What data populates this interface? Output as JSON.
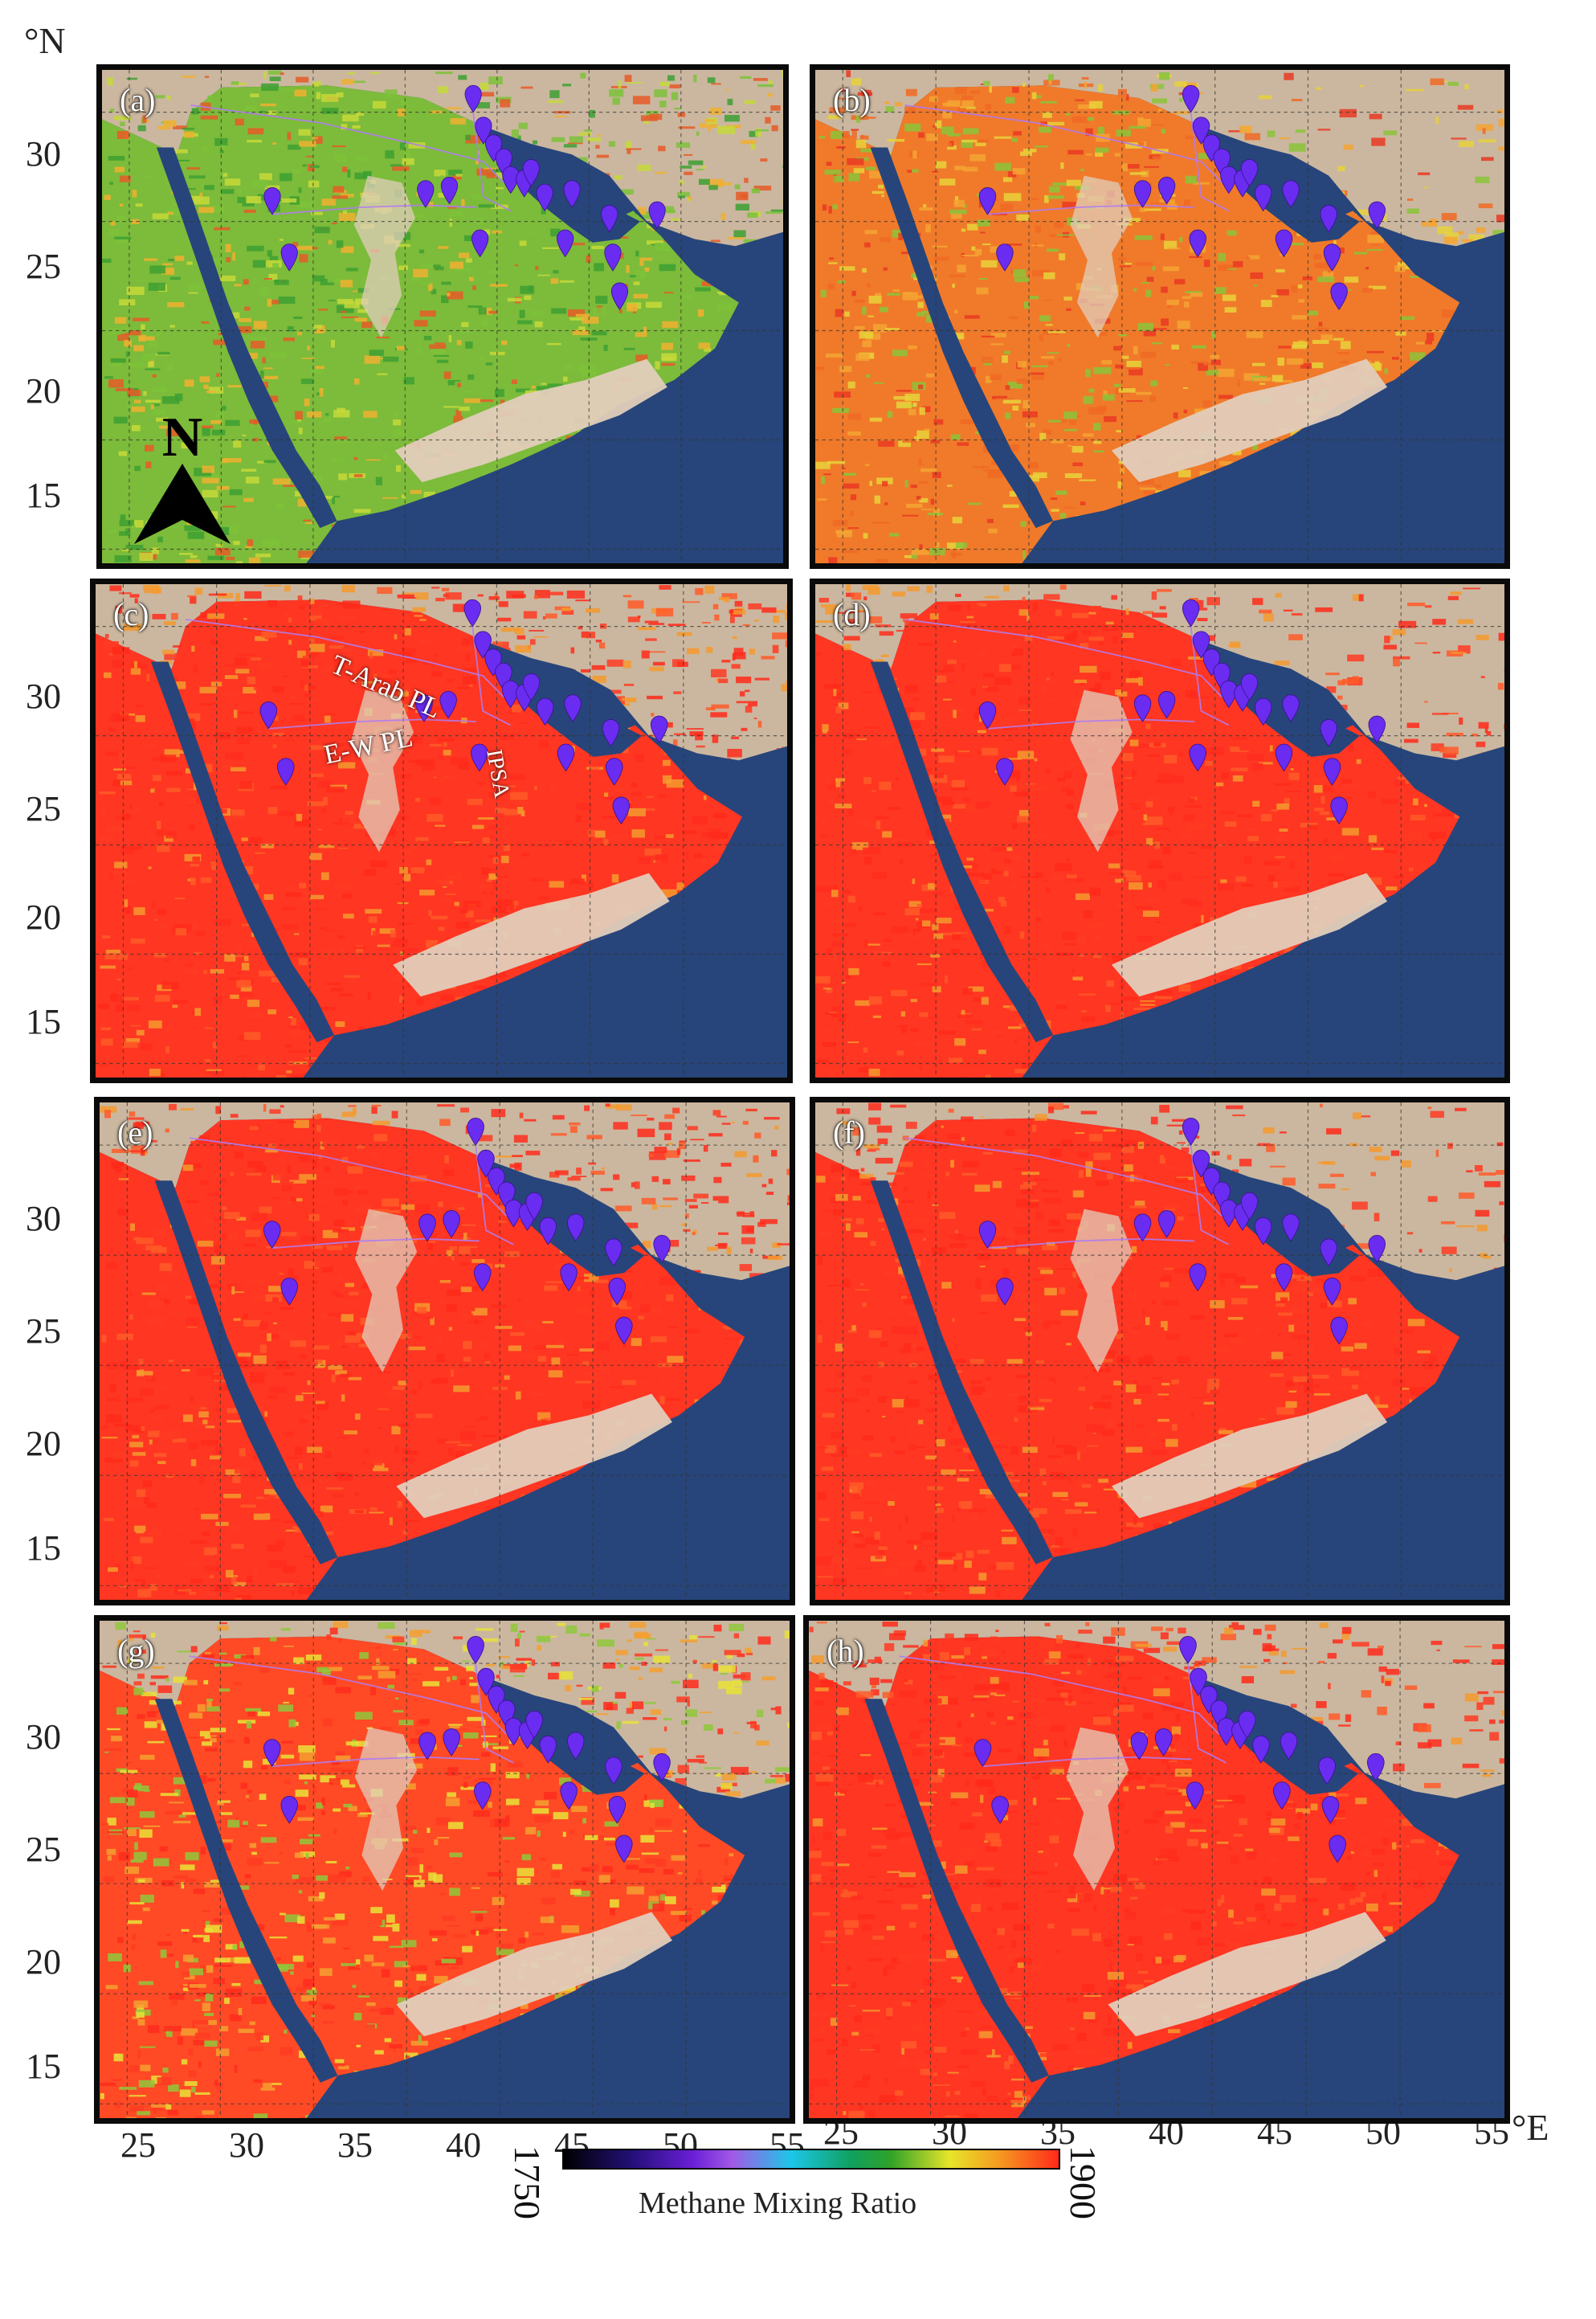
{
  "axes": {
    "lat_unit": "°N",
    "lon_unit": "°E",
    "lat_ticks": [
      "30",
      "25",
      "20",
      "15"
    ],
    "lon_ticks": [
      "25",
      "30",
      "35",
      "40",
      "45",
      "50",
      "55"
    ]
  },
  "panels": [
    {
      "label": "(a)",
      "palette": "mixed"
    },
    {
      "label": "(b)",
      "palette": "orange"
    },
    {
      "label": "(c)",
      "palette": "red"
    },
    {
      "label": "(d)",
      "palette": "red"
    },
    {
      "label": "(e)",
      "palette": "red"
    },
    {
      "label": "(f)",
      "palette": "red"
    },
    {
      "label": "(g)",
      "palette": "redyellow"
    },
    {
      "label": "(h)",
      "palette": "red"
    }
  ],
  "annotations": {
    "tarab": "T-Arab PL",
    "ipsa": "IPSA",
    "ew": "E-W PL"
  },
  "north_arrow": "N",
  "colorbar": {
    "min": "1750",
    "max": "1900",
    "title": "Methane Mixing Ratio"
  },
  "colors": {
    "sea": "#27457a",
    "land": "#d8c6b0",
    "marker": "#6a2cf0",
    "pipeline": "#b07cf0",
    "frame": "#0a0a0a"
  }
}
